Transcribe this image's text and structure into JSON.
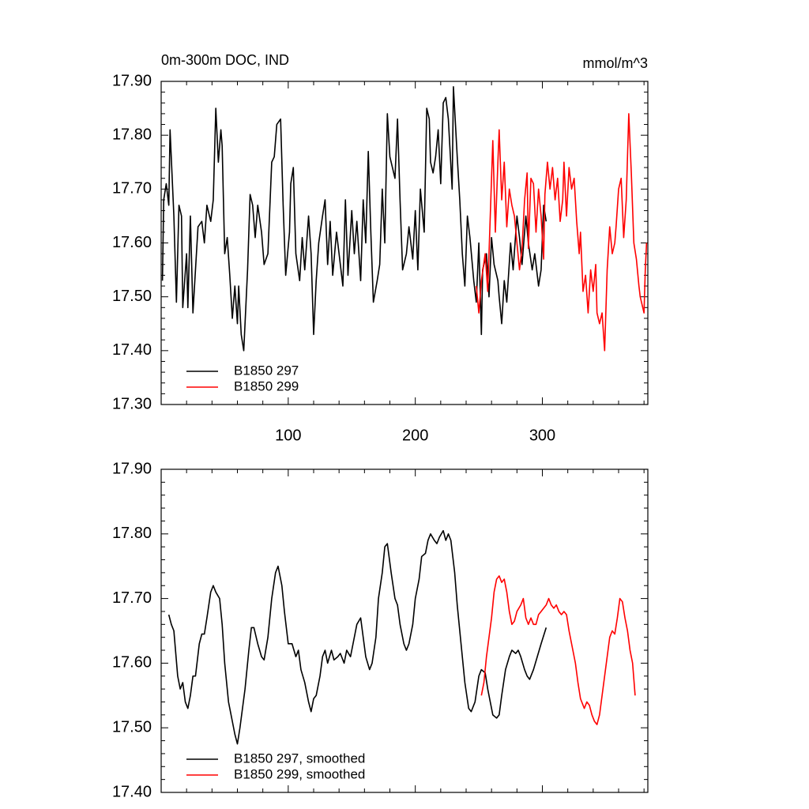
{
  "chart_data": [
    {
      "type": "line",
      "title": "0m-300m DOC, IND",
      "units": "mmol/m^3",
      "xlim": [
        0,
        383
      ],
      "xticks": [
        100,
        200,
        300
      ],
      "xtick_labels": true,
      "ylim": [
        17.3,
        17.9
      ],
      "yticks": [
        {
          "value": 17.3,
          "label": "17.30"
        },
        {
          "value": 17.4,
          "label": "17.40"
        },
        {
          "value": 17.5,
          "label": "17.50"
        },
        {
          "value": 17.6,
          "label": "17.60"
        },
        {
          "value": 17.7,
          "label": "17.70"
        },
        {
          "value": 17.8,
          "label": "17.80"
        },
        {
          "value": 17.9,
          "label": "17.90"
        }
      ],
      "legend": "lower left",
      "series": [
        {
          "name": "B1850 297",
          "color": "#000000",
          "x": [
            1,
            2,
            4,
            6,
            7,
            10,
            12,
            14,
            16,
            17,
            20,
            21,
            23,
            25,
            29,
            32,
            34,
            36,
            39,
            41,
            43,
            45,
            47,
            48,
            50,
            52,
            54,
            56,
            58,
            60,
            61,
            63,
            65,
            68,
            70,
            72,
            74,
            76,
            79,
            81,
            84,
            87,
            89,
            91,
            94,
            96,
            98,
            101,
            102,
            104,
            106,
            109,
            111,
            113,
            116,
            118,
            120,
            122,
            124,
            127,
            129,
            131,
            133,
            135,
            138,
            140,
            143,
            145,
            147,
            150,
            152,
            154,
            157,
            159,
            161,
            163,
            165,
            167,
            170,
            172,
            174,
            176,
            178,
            180,
            182,
            184,
            186,
            188,
            190,
            193,
            195,
            198,
            200,
            202,
            204,
            207,
            209,
            211,
            212,
            214,
            216,
            218,
            220,
            222,
            224,
            226,
            229,
            230,
            233,
            235,
            237,
            239,
            241,
            243,
            246,
            248,
            250,
            252,
            253,
            256,
            258,
            260,
            262,
            265,
            266,
            268,
            270,
            272,
            275,
            277,
            280,
            282,
            284,
            287,
            289,
            292,
            294,
            297,
            299,
            301,
            303
          ],
          "values": [
            17.53,
            17.68,
            17.71,
            17.67,
            17.81,
            17.65,
            17.49,
            17.67,
            17.65,
            17.48,
            17.58,
            17.48,
            17.65,
            17.47,
            17.63,
            17.64,
            17.6,
            17.67,
            17.64,
            17.68,
            17.85,
            17.75,
            17.81,
            17.78,
            17.58,
            17.61,
            17.54,
            17.46,
            17.52,
            17.45,
            17.52,
            17.43,
            17.4,
            17.55,
            17.69,
            17.67,
            17.61,
            17.67,
            17.62,
            17.56,
            17.58,
            17.75,
            17.76,
            17.82,
            17.83,
            17.67,
            17.54,
            17.62,
            17.71,
            17.74,
            17.58,
            17.53,
            17.61,
            17.55,
            17.65,
            17.58,
            17.43,
            17.53,
            17.6,
            17.65,
            17.68,
            17.56,
            17.64,
            17.54,
            17.62,
            17.58,
            17.52,
            17.68,
            17.54,
            17.66,
            17.58,
            17.64,
            17.53,
            17.68,
            17.6,
            17.77,
            17.62,
            17.49,
            17.53,
            17.56,
            17.7,
            17.6,
            17.84,
            17.76,
            17.74,
            17.72,
            17.83,
            17.68,
            17.55,
            17.58,
            17.63,
            17.57,
            17.66,
            17.55,
            17.7,
            17.62,
            17.85,
            17.83,
            17.75,
            17.73,
            17.76,
            17.81,
            17.71,
            17.86,
            17.87,
            17.83,
            17.7,
            17.89,
            17.76,
            17.68,
            17.58,
            17.52,
            17.65,
            17.61,
            17.53,
            17.49,
            17.6,
            17.43,
            17.55,
            17.58,
            17.5,
            17.61,
            17.56,
            17.53,
            17.5,
            17.45,
            17.53,
            17.49,
            17.6,
            17.55,
            17.65,
            17.61,
            17.56,
            17.65,
            17.6,
            17.55,
            17.58,
            17.52,
            17.55,
            17.67,
            17.64
          ]
        },
        {
          "name": "B1850 299",
          "color": "#ff0000",
          "x": [
            248,
            250,
            252,
            255,
            257,
            259,
            261,
            263,
            265,
            266,
            268,
            270,
            272,
            274,
            276,
            278,
            280,
            282,
            284,
            286,
            288,
            289,
            291,
            293,
            295,
            297,
            299,
            301,
            302,
            304,
            306,
            308,
            310,
            312,
            314,
            316,
            317,
            319,
            321,
            323,
            325,
            327,
            329,
            330,
            332,
            334,
            336,
            338,
            340,
            342,
            343,
            345,
            347,
            349,
            351,
            353,
            355,
            357,
            358,
            360,
            362,
            364,
            366,
            368,
            370,
            372,
            374,
            376,
            377,
            380,
            381,
            382
          ],
          "values": [
            17.52,
            17.47,
            17.53,
            17.58,
            17.51,
            17.65,
            17.79,
            17.62,
            17.75,
            17.81,
            17.68,
            17.75,
            17.63,
            17.7,
            17.67,
            17.65,
            17.6,
            17.55,
            17.59,
            17.68,
            17.73,
            17.59,
            17.72,
            17.71,
            17.62,
            17.7,
            17.65,
            17.57,
            17.69,
            17.75,
            17.7,
            17.74,
            17.68,
            17.72,
            17.64,
            17.68,
            17.75,
            17.65,
            17.74,
            17.7,
            17.72,
            17.64,
            17.58,
            17.62,
            17.51,
            17.54,
            17.47,
            17.55,
            17.51,
            17.56,
            17.47,
            17.45,
            17.47,
            17.4,
            17.55,
            17.63,
            17.58,
            17.6,
            17.63,
            17.7,
            17.72,
            17.61,
            17.68,
            17.84,
            17.73,
            17.6,
            17.57,
            17.52,
            17.5,
            17.47,
            17.55,
            17.6
          ]
        }
      ]
    },
    {
      "type": "line",
      "xlim": [
        0,
        383
      ],
      "xticks": [
        100,
        200,
        300
      ],
      "xtick_labels": false,
      "ylim": [
        17.4,
        17.9
      ],
      "yticks": [
        {
          "value": 17.4,
          "label": "17.40"
        },
        {
          "value": 17.5,
          "label": "17.50"
        },
        {
          "value": 17.6,
          "label": "17.60"
        },
        {
          "value": 17.7,
          "label": "17.70"
        },
        {
          "value": 17.8,
          "label": "17.80"
        },
        {
          "value": 17.9,
          "label": "17.90"
        }
      ],
      "legend": "lower left",
      "series": [
        {
          "name": "B1850 297, smoothed",
          "color": "#000000",
          "x": [
            6,
            8,
            10,
            13,
            15,
            17,
            19,
            21,
            23,
            25,
            27,
            30,
            32,
            34,
            36,
            39,
            41,
            43,
            46,
            48,
            50,
            53,
            56,
            58,
            60,
            62,
            64,
            66,
            69,
            71,
            73,
            76,
            79,
            81,
            84,
            87,
            90,
            92,
            95,
            97,
            100,
            103,
            106,
            108,
            110,
            113,
            116,
            118,
            120,
            122,
            125,
            127,
            129,
            131,
            134,
            136,
            139,
            141,
            144,
            146,
            149,
            151,
            154,
            157,
            159,
            161,
            164,
            166,
            169,
            171,
            174,
            176,
            178,
            181,
            184,
            186,
            188,
            191,
            193,
            195,
            198,
            200,
            203,
            205,
            208,
            210,
            212,
            215,
            217,
            219,
            222,
            224,
            226,
            228,
            231,
            233,
            236,
            239,
            242,
            244,
            247,
            250,
            252,
            255,
            257,
            259,
            261,
            264,
            266,
            268,
            271,
            274,
            276,
            279,
            281,
            283,
            286,
            288,
            290,
            293,
            296,
            299,
            303
          ],
          "values": [
            17.675,
            17.66,
            17.65,
            17.58,
            17.56,
            17.57,
            17.54,
            17.53,
            17.55,
            17.58,
            17.58,
            17.63,
            17.645,
            17.645,
            17.67,
            17.71,
            17.72,
            17.71,
            17.7,
            17.66,
            17.6,
            17.54,
            17.51,
            17.49,
            17.475,
            17.5,
            17.53,
            17.56,
            17.62,
            17.655,
            17.655,
            17.63,
            17.61,
            17.605,
            17.64,
            17.7,
            17.74,
            17.75,
            17.72,
            17.68,
            17.63,
            17.63,
            17.61,
            17.62,
            17.59,
            17.57,
            17.54,
            17.525,
            17.545,
            17.55,
            17.58,
            17.61,
            17.62,
            17.6,
            17.62,
            17.605,
            17.61,
            17.615,
            17.6,
            17.62,
            17.61,
            17.63,
            17.66,
            17.67,
            17.64,
            17.61,
            17.59,
            17.6,
            17.64,
            17.7,
            17.74,
            17.78,
            17.785,
            17.74,
            17.7,
            17.69,
            17.66,
            17.63,
            17.62,
            17.63,
            17.66,
            17.7,
            17.73,
            17.765,
            17.77,
            17.79,
            17.8,
            17.79,
            17.785,
            17.795,
            17.805,
            17.79,
            17.8,
            17.79,
            17.74,
            17.69,
            17.63,
            17.57,
            17.53,
            17.525,
            17.54,
            17.58,
            17.59,
            17.585,
            17.56,
            17.54,
            17.52,
            17.515,
            17.52,
            17.55,
            17.59,
            17.61,
            17.62,
            17.615,
            17.62,
            17.61,
            17.59,
            17.58,
            17.575,
            17.59,
            17.61,
            17.63,
            17.655
          ]
        },
        {
          "name": "B1850 299, smoothed",
          "color": "#ff0000",
          "x": [
            252,
            254,
            256,
            258,
            260,
            262,
            264,
            266,
            268,
            270,
            272,
            274,
            276,
            278,
            280,
            283,
            285,
            287,
            289,
            291,
            293,
            295,
            297,
            299,
            301,
            303,
            305,
            307,
            309,
            311,
            313,
            315,
            317,
            319,
            321,
            323,
            326,
            328,
            330,
            333,
            335,
            337,
            339,
            341,
            343,
            345,
            347,
            349,
            351,
            353,
            355,
            357,
            359,
            361,
            363,
            365,
            367,
            369,
            371,
            373
          ],
          "values": [
            17.55,
            17.57,
            17.61,
            17.64,
            17.67,
            17.71,
            17.73,
            17.735,
            17.725,
            17.73,
            17.71,
            17.68,
            17.66,
            17.665,
            17.68,
            17.69,
            17.7,
            17.67,
            17.66,
            17.67,
            17.66,
            17.66,
            17.675,
            17.68,
            17.685,
            17.69,
            17.7,
            17.69,
            17.685,
            17.69,
            17.68,
            17.675,
            17.68,
            17.675,
            17.65,
            17.63,
            17.6,
            17.57,
            17.545,
            17.53,
            17.54,
            17.535,
            17.52,
            17.51,
            17.505,
            17.52,
            17.55,
            17.58,
            17.61,
            17.64,
            17.65,
            17.645,
            17.67,
            17.7,
            17.695,
            17.67,
            17.65,
            17.62,
            17.6,
            17.55
          ]
        }
      ]
    }
  ]
}
